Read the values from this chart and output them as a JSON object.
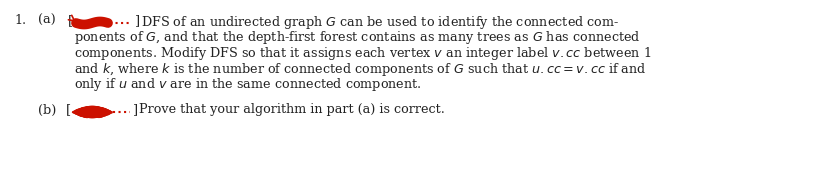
{
  "background_color": "#ffffff",
  "fig_width": 8.3,
  "fig_height": 1.71,
  "dpi": 100,
  "number_label": "1.",
  "part_a_label": "(a)",
  "part_b_label": "(b)",
  "text_color": "#222222",
  "line1": "DFS of an undirected graph $G$ can be used to identify the connected com-",
  "line2": "ponents of $G$, and that the depth-first forest contains as many trees as $G$ has connected",
  "line3": "components. Modify DFS so that it assigns each vertex $v$ an integer label $v.cc$ between 1",
  "line4": "and $k$, where $k$ is the number of connected components of $G$ such that $u.cc = v.cc$ if and",
  "line5": "only if $u$ and $v$ are in the same connected component.",
  "line_b": "Prove that your algorithm in part (a) is correct.",
  "font_size": 9.2,
  "red_color": "#cc1100"
}
